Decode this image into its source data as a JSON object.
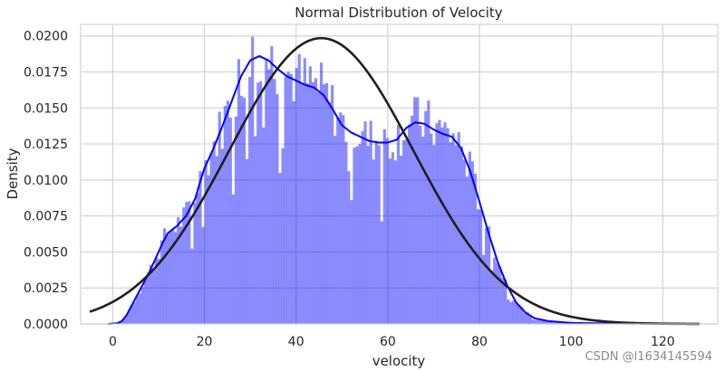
{
  "chart_data": {
    "type": "histogram",
    "title": "Normal Distribution of Velocity",
    "xlabel": "velocity",
    "ylabel": "Density",
    "xlim": [
      -7,
      132
    ],
    "ylim": [
      0,
      0.0208
    ],
    "xticks": [
      0,
      20,
      40,
      60,
      80,
      100,
      120
    ],
    "xtick_labels": [
      "0",
      "20",
      "40",
      "60",
      "80",
      "100",
      "120"
    ],
    "yticks": [
      0.0,
      0.0025,
      0.005,
      0.0075,
      0.01,
      0.0125,
      0.015,
      0.0175,
      0.02
    ],
    "ytick_labels": [
      "0.0000",
      "0.0025",
      "0.0050",
      "0.0075",
      "0.0100",
      "0.0125",
      "0.0150",
      "0.0175",
      "0.0200"
    ],
    "grid": true,
    "histogram": {
      "bin_width": 0.6,
      "range": [
        -4,
        128
      ],
      "color": "#0000ff",
      "alpha": 0.45
    },
    "kde": {
      "name": "KDE",
      "color": "#0000ff",
      "points": [
        [
          -1,
          0
        ],
        [
          1,
          5e-05
        ],
        [
          2,
          0.0002
        ],
        [
          3,
          0.0006
        ],
        [
          4,
          0.0012
        ],
        [
          5,
          0.0018
        ],
        [
          6,
          0.0024
        ],
        [
          8,
          0.0036
        ],
        [
          10,
          0.005
        ],
        [
          11,
          0.0057
        ],
        [
          12,
          0.0063
        ],
        [
          14,
          0.0068
        ],
        [
          16,
          0.0075
        ],
        [
          18,
          0.0087
        ],
        [
          19,
          0.0098
        ],
        [
          20,
          0.0108
        ],
        [
          22,
          0.0122
        ],
        [
          24,
          0.0138
        ],
        [
          26,
          0.0155
        ],
        [
          28,
          0.0172
        ],
        [
          30,
          0.0183
        ],
        [
          32,
          0.0186
        ],
        [
          34,
          0.0183
        ],
        [
          36,
          0.0177
        ],
        [
          38,
          0.0172
        ],
        [
          40,
          0.0169
        ],
        [
          42,
          0.0166
        ],
        [
          44,
          0.0164
        ],
        [
          46,
          0.0159
        ],
        [
          48,
          0.0149
        ],
        [
          50,
          0.0138
        ],
        [
          52,
          0.0133
        ],
        [
          54,
          0.013
        ],
        [
          56,
          0.0127
        ],
        [
          58,
          0.0126
        ],
        [
          60,
          0.0126
        ],
        [
          62,
          0.0128
        ],
        [
          64,
          0.0136
        ],
        [
          66,
          0.014
        ],
        [
          68,
          0.0139
        ],
        [
          70,
          0.0135
        ],
        [
          72,
          0.0132
        ],
        [
          74,
          0.013
        ],
        [
          76,
          0.0122
        ],
        [
          78,
          0.0106
        ],
        [
          80,
          0.0085
        ],
        [
          82,
          0.0063
        ],
        [
          84,
          0.0043
        ],
        [
          86,
          0.0027
        ],
        [
          88,
          0.0015
        ],
        [
          90,
          0.0008
        ],
        [
          92,
          0.0004
        ],
        [
          95,
          0.0002
        ],
        [
          100,
          7e-05
        ],
        [
          110,
          3e-05
        ],
        [
          120,
          1e-05
        ],
        [
          128,
          0.0
        ]
      ]
    },
    "normal_fit": {
      "name": "Normal fit",
      "color": "#1f1f1f",
      "mean": 45.5,
      "std": 20.1,
      "x_range": [
        -5,
        128
      ]
    },
    "watermark": "CSDN @l1634145594"
  }
}
